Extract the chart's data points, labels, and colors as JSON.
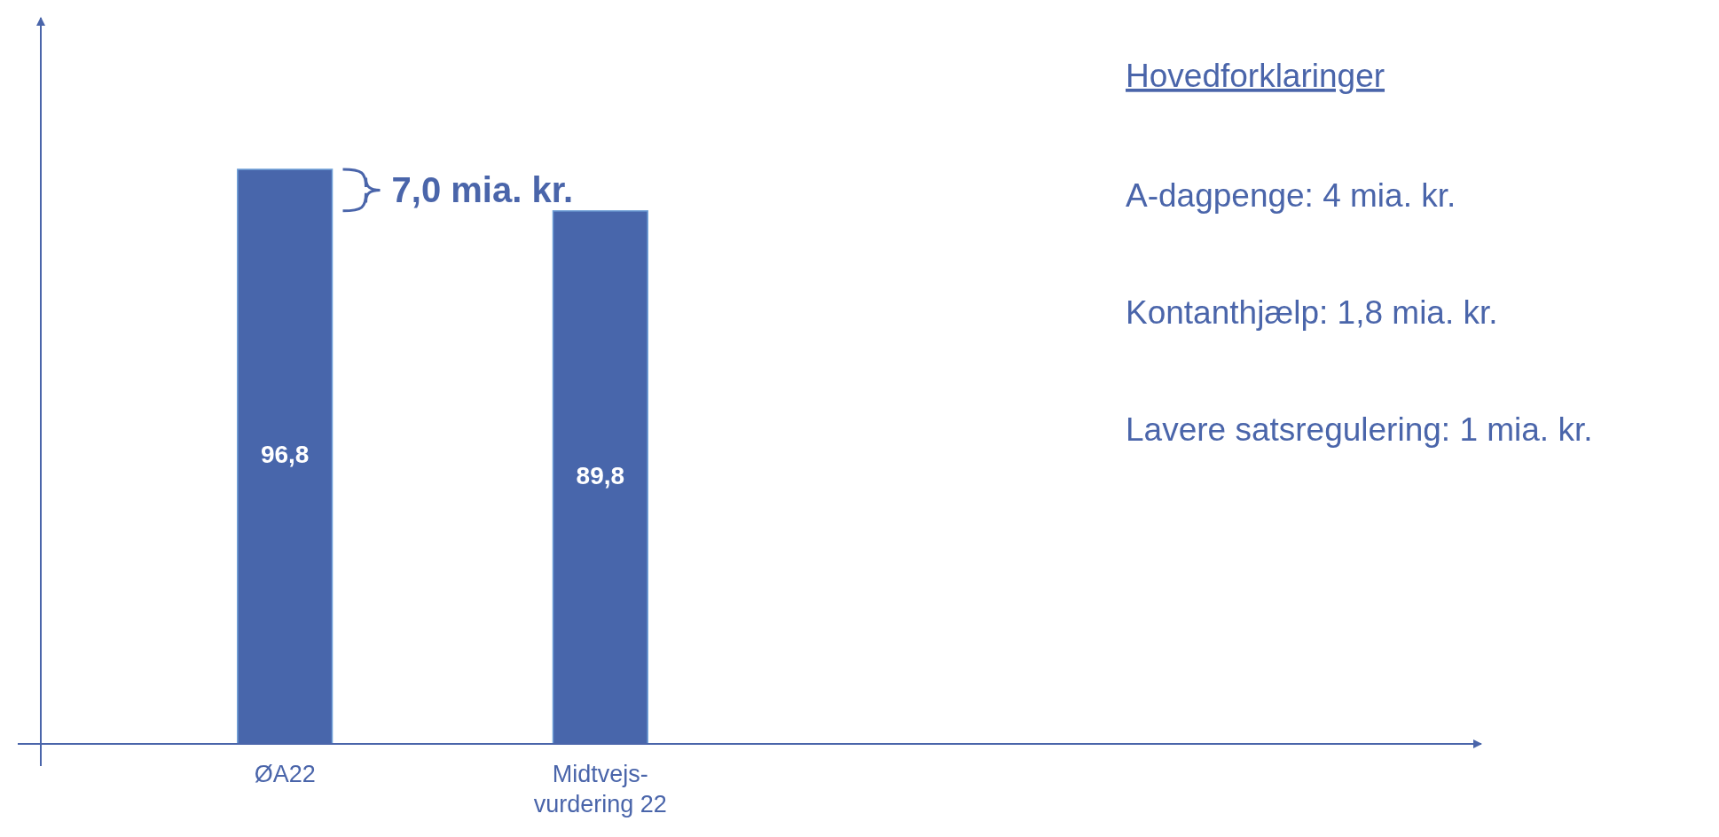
{
  "chart_data": {
    "type": "bar",
    "categories": [
      "ØA22",
      "Midtvejs-vurdering 22"
    ],
    "values": [
      96.8,
      89.8
    ],
    "value_labels": [
      "96,8",
      "89,8"
    ],
    "color": "#4866ab",
    "annotations": [
      "7,0 mia. kr.",
      "Hovedforklaringer",
      "A-dagpenge: 4 mia. kr.",
      "Kontanthjælp: 1,8 mia. kr.",
      "Lavere satsregulering: 1 mia. kr."
    ]
  }
}
